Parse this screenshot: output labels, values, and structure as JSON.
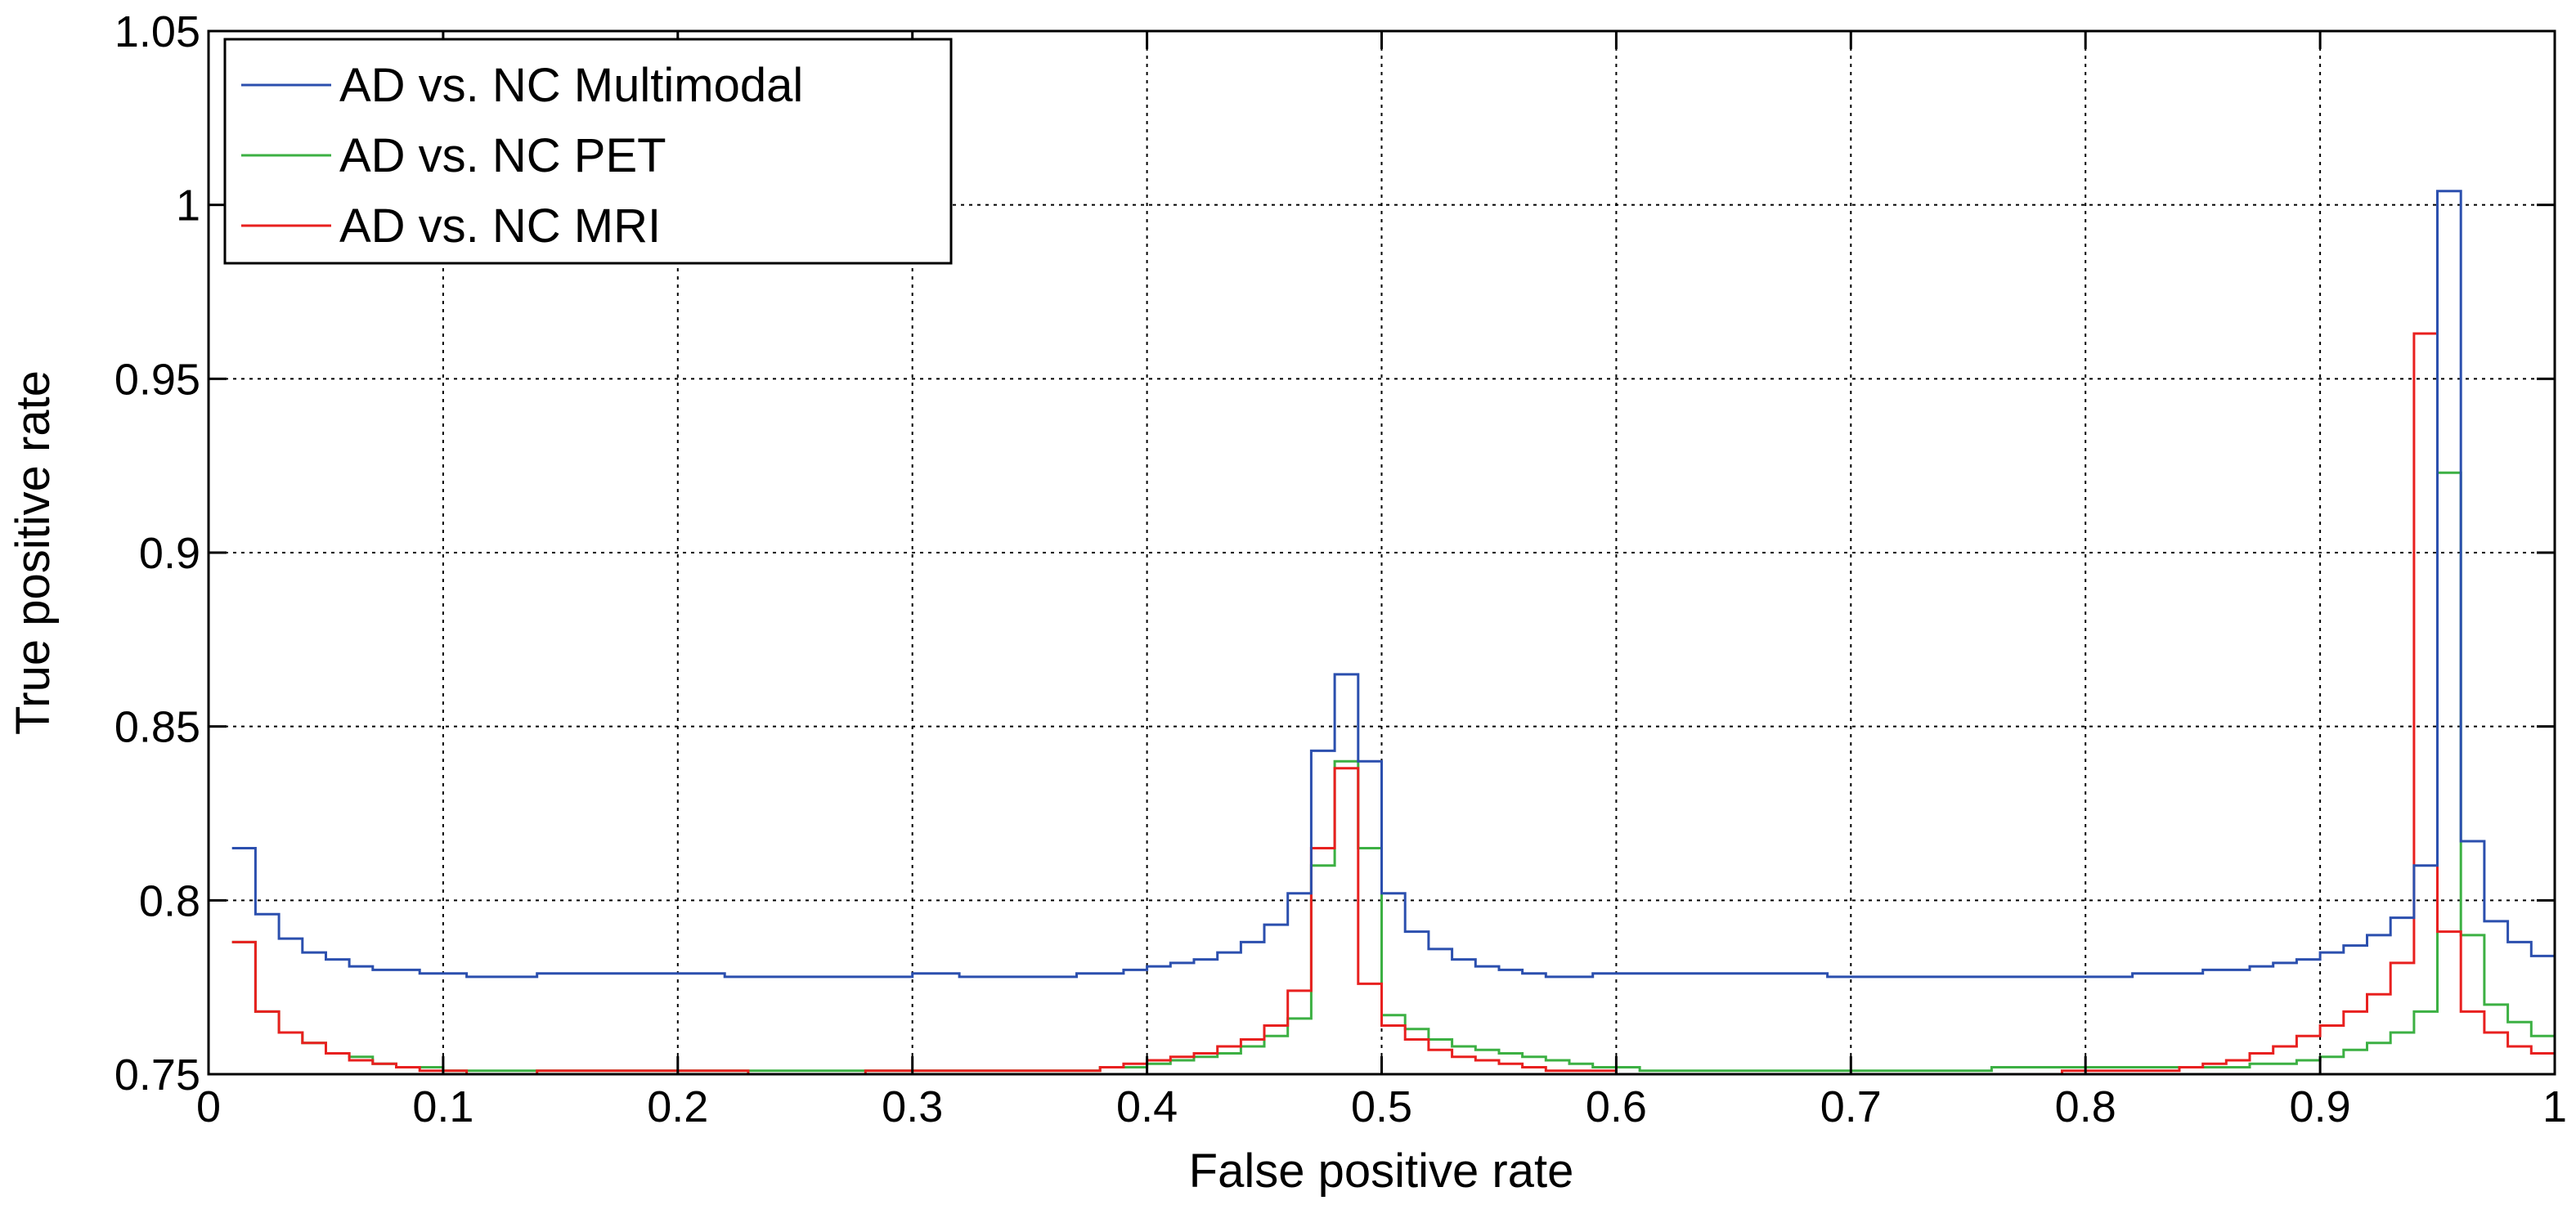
{
  "chart_data": {
    "type": "line",
    "title": "",
    "xlabel": "False positive rate",
    "ylabel": "True positive rate",
    "xlim": [
      0,
      1
    ],
    "ylim": [
      0.75,
      1.05
    ],
    "grid": true,
    "legend_position": "top-left",
    "x_ticks": [
      "0",
      "0.1",
      "0.2",
      "0.3",
      "0.4",
      "0.5",
      "0.6",
      "0.7",
      "0.8",
      "0.9",
      "1"
    ],
    "y_ticks": [
      "0.75",
      "0.8",
      "0.85",
      "0.9",
      "0.95",
      "1",
      "1.05"
    ],
    "x": [
      0.01,
      0.02,
      0.03,
      0.04,
      0.05,
      0.06,
      0.07,
      0.08,
      0.09,
      0.1,
      0.11,
      0.12,
      0.13,
      0.14,
      0.15,
      0.16,
      0.17,
      0.18,
      0.19,
      0.2,
      0.21,
      0.22,
      0.23,
      0.24,
      0.25,
      0.26,
      0.27,
      0.28,
      0.29,
      0.3,
      0.31,
      0.32,
      0.33,
      0.34,
      0.35,
      0.36,
      0.37,
      0.38,
      0.39,
      0.4,
      0.41,
      0.42,
      0.43,
      0.44,
      0.45,
      0.46,
      0.47,
      0.48,
      0.49,
      0.5,
      0.51,
      0.52,
      0.53,
      0.54,
      0.55,
      0.56,
      0.57,
      0.58,
      0.59,
      0.6,
      0.61,
      0.62,
      0.63,
      0.64,
      0.65,
      0.66,
      0.67,
      0.68,
      0.69,
      0.7,
      0.71,
      0.72,
      0.73,
      0.74,
      0.75,
      0.76,
      0.77,
      0.78,
      0.79,
      0.8,
      0.81,
      0.82,
      0.83,
      0.84,
      0.85,
      0.86,
      0.87,
      0.88,
      0.89,
      0.9,
      0.91,
      0.92,
      0.93,
      0.94,
      0.95,
      0.96,
      0.97,
      0.98,
      0.99,
      1.0
    ],
    "series": [
      {
        "name": "AD vs. NC Multimodal",
        "color": "#2b4fae",
        "values": [
          0.815,
          0.796,
          0.789,
          0.785,
          0.783,
          0.781,
          0.78,
          0.78,
          0.779,
          0.779,
          0.778,
          0.778,
          0.778,
          0.779,
          0.779,
          0.779,
          0.779,
          0.779,
          0.779,
          0.779,
          0.779,
          0.778,
          0.778,
          0.778,
          0.778,
          0.778,
          0.778,
          0.778,
          0.778,
          0.779,
          0.779,
          0.778,
          0.778,
          0.778,
          0.778,
          0.778,
          0.779,
          0.779,
          0.78,
          0.781,
          0.782,
          0.783,
          0.785,
          0.788,
          0.793,
          0.802,
          0.843,
          0.865,
          0.84,
          0.802,
          0.791,
          0.786,
          0.783,
          0.781,
          0.78,
          0.779,
          0.778,
          0.778,
          0.779,
          0.779,
          0.779,
          0.779,
          0.779,
          0.779,
          0.779,
          0.779,
          0.779,
          0.779,
          0.778,
          0.778,
          0.778,
          0.778,
          0.778,
          0.778,
          0.778,
          0.778,
          0.778,
          0.778,
          0.778,
          0.778,
          0.778,
          0.779,
          0.779,
          0.779,
          0.78,
          0.78,
          0.781,
          0.782,
          0.783,
          0.785,
          0.787,
          0.79,
          0.795,
          0.81,
          1.004,
          0.817,
          0.794,
          0.788,
          0.784,
          0.784
        ]
      },
      {
        "name": "AD vs. NC PET",
        "color": "#3cb043",
        "values": [
          0.788,
          0.768,
          0.762,
          0.759,
          0.756,
          0.755,
          0.753,
          0.752,
          0.752,
          0.751,
          0.751,
          0.751,
          0.751,
          0.751,
          0.751,
          0.751,
          0.751,
          0.751,
          0.751,
          0.751,
          0.751,
          0.751,
          0.751,
          0.751,
          0.751,
          0.751,
          0.751,
          0.751,
          0.751,
          0.751,
          0.751,
          0.751,
          0.751,
          0.751,
          0.751,
          0.751,
          0.751,
          0.752,
          0.752,
          0.753,
          0.754,
          0.755,
          0.756,
          0.758,
          0.761,
          0.766,
          0.81,
          0.84,
          0.815,
          0.767,
          0.763,
          0.76,
          0.758,
          0.757,
          0.756,
          0.755,
          0.754,
          0.753,
          0.752,
          0.752,
          0.751,
          0.751,
          0.751,
          0.751,
          0.751,
          0.751,
          0.751,
          0.751,
          0.751,
          0.751,
          0.751,
          0.751,
          0.751,
          0.751,
          0.751,
          0.752,
          0.752,
          0.752,
          0.752,
          0.752,
          0.752,
          0.752,
          0.752,
          0.752,
          0.752,
          0.752,
          0.753,
          0.753,
          0.754,
          0.755,
          0.757,
          0.759,
          0.762,
          0.768,
          0.923,
          0.79,
          0.77,
          0.765,
          0.761,
          0.761
        ]
      },
      {
        "name": "AD vs. NC MRI",
        "color": "#e8201f",
        "values": [
          0.788,
          0.768,
          0.762,
          0.759,
          0.756,
          0.754,
          0.753,
          0.752,
          0.751,
          0.751,
          0.75,
          0.75,
          0.75,
          0.751,
          0.751,
          0.751,
          0.751,
          0.751,
          0.751,
          0.751,
          0.751,
          0.751,
          0.75,
          0.75,
          0.75,
          0.75,
          0.75,
          0.751,
          0.751,
          0.751,
          0.751,
          0.751,
          0.751,
          0.751,
          0.751,
          0.751,
          0.751,
          0.752,
          0.753,
          0.754,
          0.755,
          0.756,
          0.758,
          0.76,
          0.764,
          0.774,
          0.815,
          0.838,
          0.776,
          0.764,
          0.76,
          0.757,
          0.755,
          0.754,
          0.753,
          0.752,
          0.751,
          0.751,
          0.751,
          0.75,
          0.75,
          0.75,
          0.75,
          0.75,
          0.75,
          0.75,
          0.75,
          0.75,
          0.75,
          0.75,
          0.75,
          0.75,
          0.75,
          0.75,
          0.75,
          0.75,
          0.75,
          0.75,
          0.751,
          0.751,
          0.751,
          0.751,
          0.751,
          0.752,
          0.753,
          0.754,
          0.756,
          0.758,
          0.761,
          0.764,
          0.768,
          0.773,
          0.782,
          0.963,
          0.791,
          0.768,
          0.762,
          0.758,
          0.756,
          0.756
        ]
      }
    ]
  }
}
